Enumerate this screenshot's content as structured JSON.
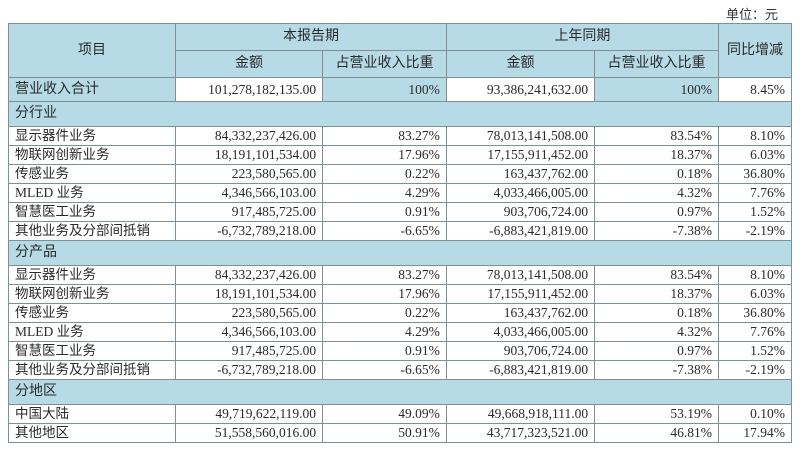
{
  "unit_label": "单位：元",
  "header": {
    "item": "项目",
    "current_period": "本报告期",
    "prior_period": "上年同期",
    "yoy_change": "同比增减",
    "amount": "金额",
    "share": "占营业收入比重"
  },
  "total": {
    "label": "营业收入合计",
    "cur_amount": "101,278,182,135.00",
    "cur_share": "100%",
    "prev_amount": "93,386,241,632.00",
    "prev_share": "100%",
    "yoy": "8.45%"
  },
  "sections": [
    {
      "title": "分行业",
      "rows": [
        {
          "label": "显示器件业务",
          "cur_amount": "84,332,237,426.00",
          "cur_share": "83.27%",
          "prev_amount": "78,013,141,508.00",
          "prev_share": "83.54%",
          "yoy": "8.10%"
        },
        {
          "label": "物联网创新业务",
          "cur_amount": "18,191,101,534.00",
          "cur_share": "17.96%",
          "prev_amount": "17,155,911,452.00",
          "prev_share": "18.37%",
          "yoy": "6.03%"
        },
        {
          "label": "传感业务",
          "cur_amount": "223,580,565.00",
          "cur_share": "0.22%",
          "prev_amount": "163,437,762.00",
          "prev_share": "0.18%",
          "yoy": "36.80%"
        },
        {
          "label": "MLED 业务",
          "cur_amount": "4,346,566,103.00",
          "cur_share": "4.29%",
          "prev_amount": "4,033,466,005.00",
          "prev_share": "4.32%",
          "yoy": "7.76%"
        },
        {
          "label": "智慧医工业务",
          "cur_amount": "917,485,725.00",
          "cur_share": "0.91%",
          "prev_amount": "903,706,724.00",
          "prev_share": "0.97%",
          "yoy": "1.52%"
        },
        {
          "label": "其他业务及分部间抵销",
          "cur_amount": "-6,732,789,218.00",
          "cur_share": "-6.65%",
          "prev_amount": "-6,883,421,819.00",
          "prev_share": "-7.38%",
          "yoy": "-2.19%"
        }
      ]
    },
    {
      "title": "分产品",
      "rows": [
        {
          "label": "显示器件业务",
          "cur_amount": "84,332,237,426.00",
          "cur_share": "83.27%",
          "prev_amount": "78,013,141,508.00",
          "prev_share": "83.54%",
          "yoy": "8.10%"
        },
        {
          "label": "物联网创新业务",
          "cur_amount": "18,191,101,534.00",
          "cur_share": "17.96%",
          "prev_amount": "17,155,911,452.00",
          "prev_share": "18.37%",
          "yoy": "6.03%"
        },
        {
          "label": "传感业务",
          "cur_amount": "223,580,565.00",
          "cur_share": "0.22%",
          "prev_amount": "163,437,762.00",
          "prev_share": "0.18%",
          "yoy": "36.80%"
        },
        {
          "label": "MLED 业务",
          "cur_amount": "4,346,566,103.00",
          "cur_share": "4.29%",
          "prev_amount": "4,033,466,005.00",
          "prev_share": "4.32%",
          "yoy": "7.76%"
        },
        {
          "label": "智慧医工业务",
          "cur_amount": "917,485,725.00",
          "cur_share": "0.91%",
          "prev_amount": "903,706,724.00",
          "prev_share": "0.97%",
          "yoy": "1.52%"
        },
        {
          "label": "其他业务及分部间抵销",
          "cur_amount": "-6,732,789,218.00",
          "cur_share": "-6.65%",
          "prev_amount": "-6,883,421,819.00",
          "prev_share": "-7.38%",
          "yoy": "-2.19%"
        }
      ]
    },
    {
      "title": "分地区",
      "rows": [
        {
          "label": "中国大陆",
          "cur_amount": "49,719,622,119.00",
          "cur_share": "49.09%",
          "prev_amount": "49,668,918,111.00",
          "prev_share": "53.19%",
          "yoy": "0.10%"
        },
        {
          "label": "其他地区",
          "cur_amount": "51,558,560,016.00",
          "cur_share": "50.91%",
          "prev_amount": "43,717,323,521.00",
          "prev_share": "46.81%",
          "yoy": "17.94%"
        }
      ]
    }
  ],
  "colors": {
    "header_bg": "#b6dbe6",
    "border": "#7f8f96",
    "cell_bg": "#ffffff"
  }
}
